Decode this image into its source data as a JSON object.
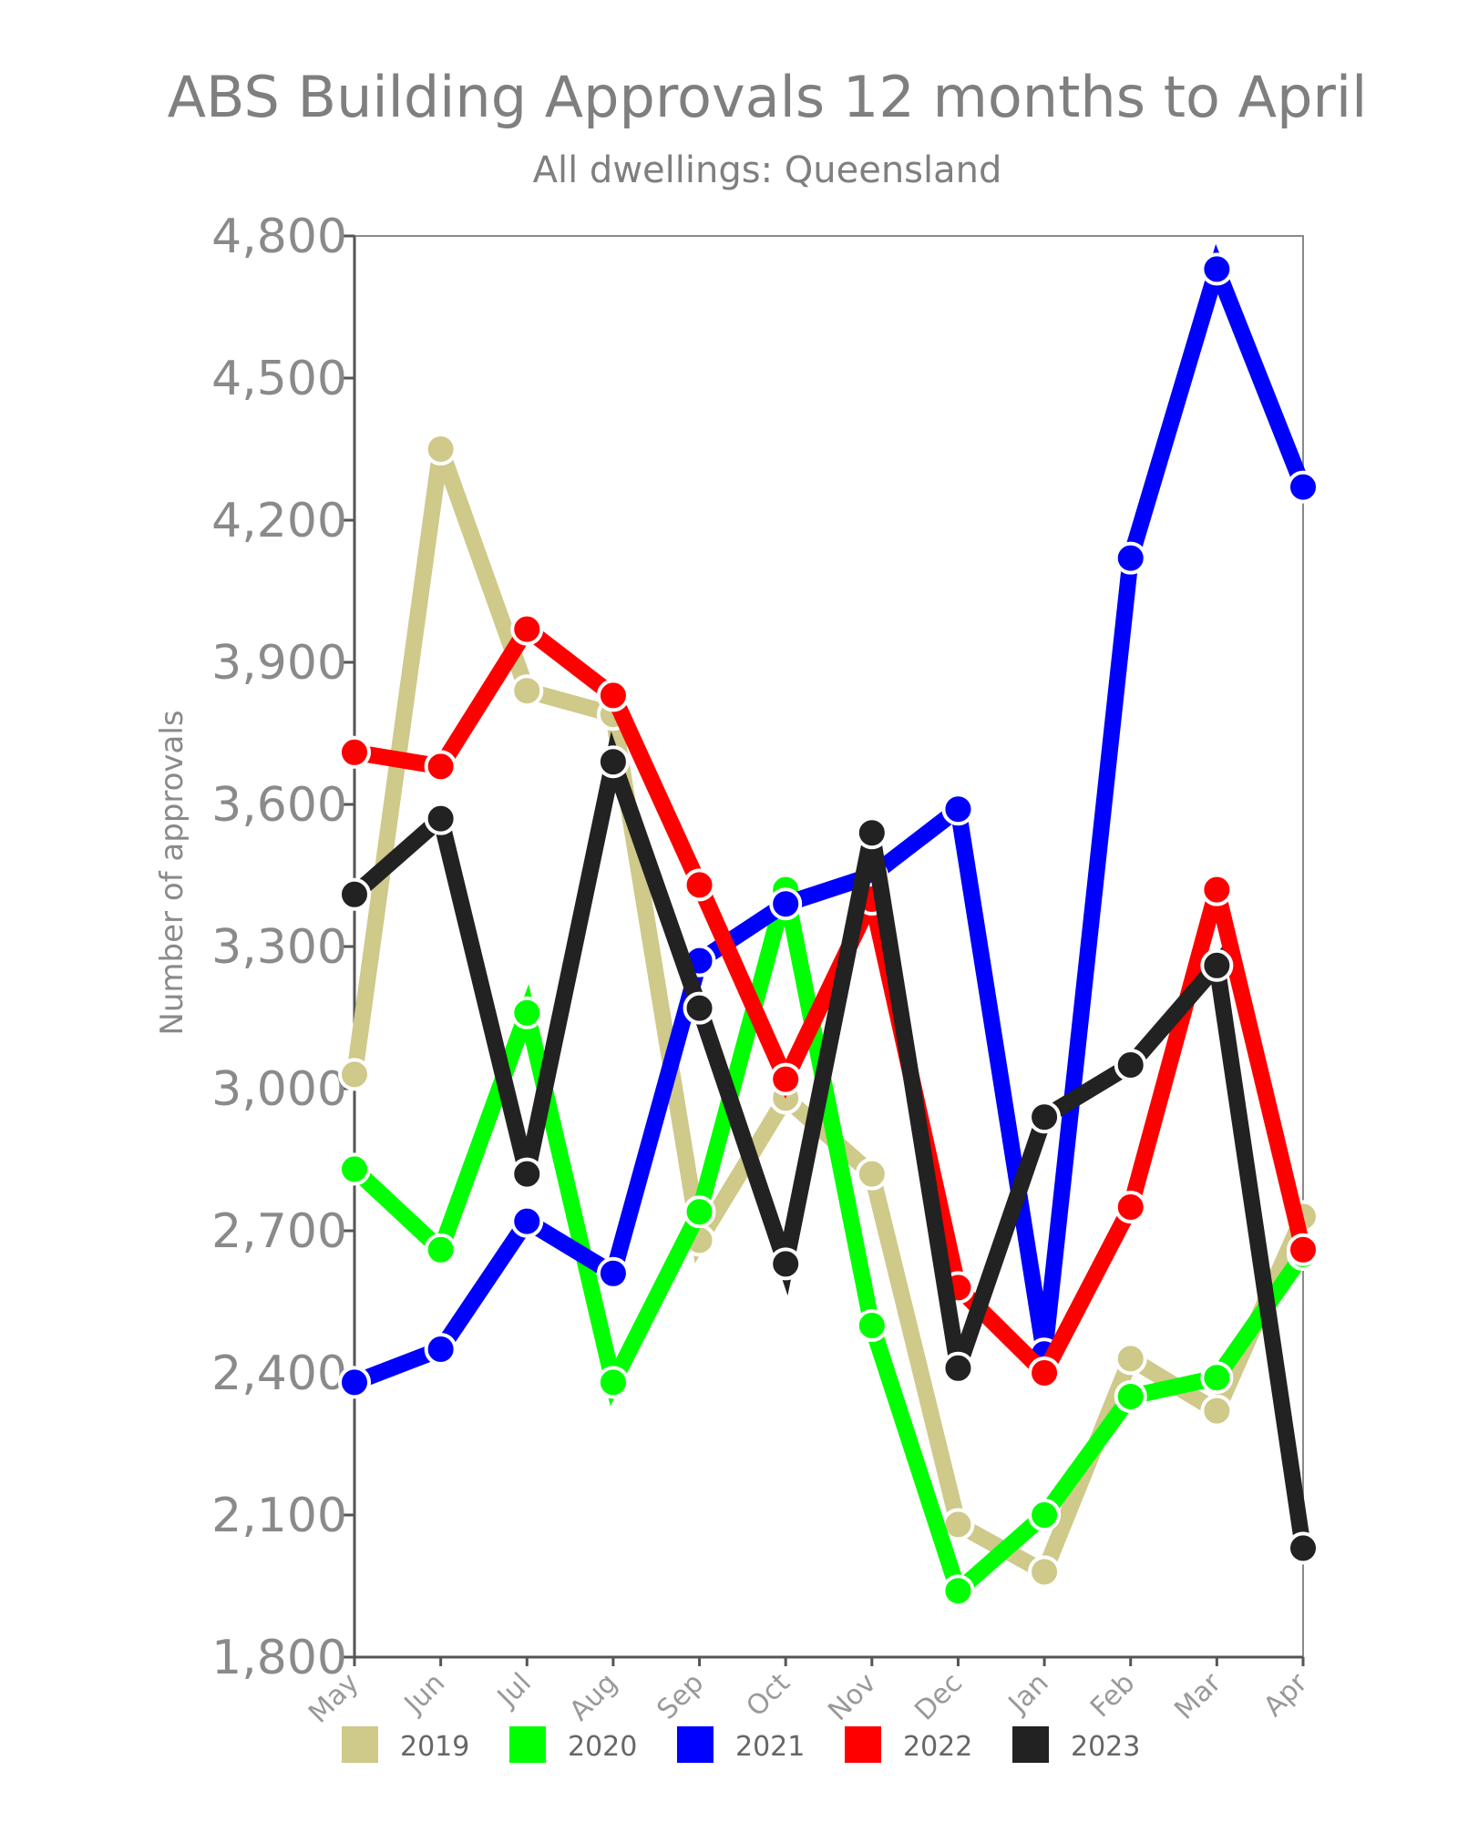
{
  "chart_data": {
    "type": "line",
    "title": "ABS Building Approvals 12 months to April",
    "subtitle": "All dwellings: Queensland",
    "xlabel": "",
    "ylabel": "Number of approvals",
    "categories": [
      "May",
      "Jun",
      "Jul",
      "Aug",
      "Sep",
      "Oct",
      "Nov",
      "Dec",
      "Jan",
      "Feb",
      "Mar",
      "Apr"
    ],
    "ylim": [
      1800,
      4800
    ],
    "yticks": [
      1800,
      2100,
      2400,
      2700,
      3000,
      3300,
      3600,
      3900,
      4200,
      4500,
      4800
    ],
    "ytick_labels": [
      "1,800",
      "2,100",
      "2,400",
      "2,700",
      "3,000",
      "3,300",
      "3,600",
      "3,900",
      "4,200",
      "4,500",
      "4,800"
    ],
    "grid": false,
    "legend_position": "bottom",
    "series": [
      {
        "name": "2019",
        "color": "#cfc98a",
        "values": [
          3030,
          4350,
          3840,
          3790,
          2680,
          2980,
          2820,
          2080,
          1980,
          2430,
          2320,
          2730
        ]
      },
      {
        "name": "2020",
        "color": "#00ff00",
        "values": [
          2830,
          2660,
          3160,
          2380,
          2740,
          3420,
          2500,
          1940,
          2100,
          2350,
          2390,
          2650
        ]
      },
      {
        "name": "2021",
        "color": "#0000ff",
        "values": [
          2380,
          2450,
          2720,
          2610,
          3270,
          3390,
          3450,
          3590,
          2440,
          4120,
          4730,
          4270
        ]
      },
      {
        "name": "2022",
        "color": "#ff0000",
        "values": [
          3710,
          3680,
          3970,
          3830,
          3430,
          3020,
          3400,
          2580,
          2400,
          2750,
          3420,
          2660
        ]
      },
      {
        "name": "2023",
        "color": "#222222",
        "values": [
          3410,
          3570,
          2820,
          3690,
          3170,
          2630,
          3540,
          2410,
          2940,
          3050,
          3260,
          2030
        ]
      }
    ]
  }
}
